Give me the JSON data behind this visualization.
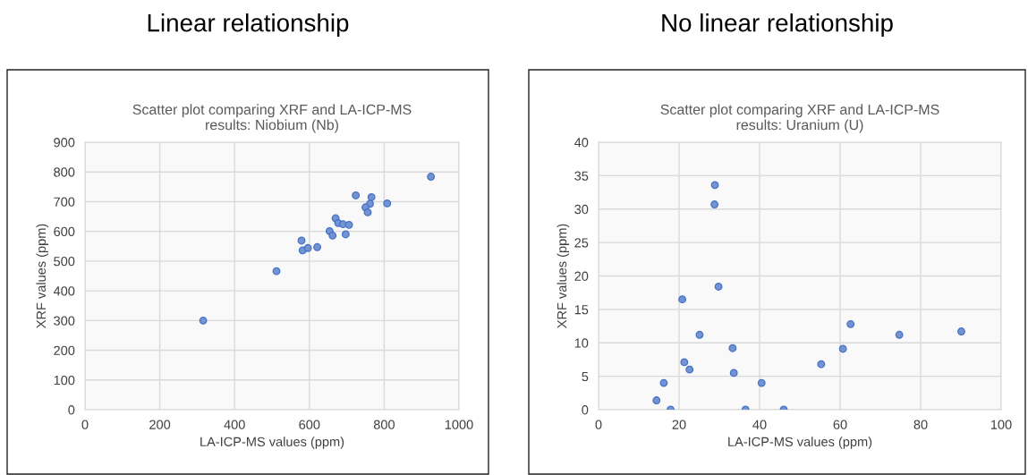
{
  "chart_data": [
    {
      "type": "scatter",
      "title": "Linear relationship",
      "subtitle": "Scatter plot comparing XRF and LA-ICP-MS\nresults: Niobium (Nb)",
      "xlabel": "LA-ICP-MS values (ppm)",
      "ylabel": "XRF values (ppm)",
      "x": [
        925,
        724,
        766,
        808,
        762,
        750,
        756,
        670,
        677,
        690,
        706,
        654,
        662,
        697,
        579,
        582,
        596,
        621,
        512,
        316
      ],
      "series": [
        {
          "color": "#4472c4",
          "values": [
            784,
            721,
            715,
            694,
            693,
            681,
            664,
            644,
            628,
            624,
            622,
            601,
            586,
            590,
            569,
            536,
            544,
            547,
            466,
            300
          ]
        }
      ],
      "xlim": [
        0,
        1000
      ],
      "xticks": [
        0,
        200,
        400,
        600,
        800,
        1000
      ],
      "ylim": [
        0,
        900
      ],
      "yticks": [
        0,
        100,
        200,
        300,
        400,
        500,
        600,
        700,
        800,
        900
      ],
      "grid": true,
      "marker": "circle"
    },
    {
      "type": "scatter",
      "title": "No linear relationship",
      "subtitle": "Scatter plot comparing XRF and LA-ICP-MS\nresults: Uranium (U)",
      "xlabel": "LA-ICP-MS values (ppm)",
      "ylabel": "XRF values (ppm)",
      "x": [
        28.9,
        28.8,
        29.8,
        20.8,
        25.1,
        62.6,
        74.7,
        90.1,
        33.3,
        60.7,
        21.3,
        22.6,
        55.3,
        33.6,
        16.2,
        40.5,
        14.4,
        17.9,
        36.5,
        46.0
      ],
      "series": [
        {
          "color": "#4472c4",
          "values": [
            33.6,
            30.7,
            18.4,
            16.5,
            11.2,
            12.8,
            11.2,
            11.7,
            9.2,
            9.1,
            7.1,
            6.0,
            6.8,
            5.5,
            4.0,
            4.0,
            1.4,
            0,
            0,
            0
          ]
        }
      ],
      "xlim": [
        0,
        100
      ],
      "xticks": [
        0,
        20,
        40,
        60,
        80,
        100
      ],
      "ylim": [
        0,
        40
      ],
      "yticks": [
        0,
        5,
        10,
        15,
        20,
        25,
        30,
        35,
        40
      ],
      "grid": true,
      "marker": "circle"
    }
  ]
}
